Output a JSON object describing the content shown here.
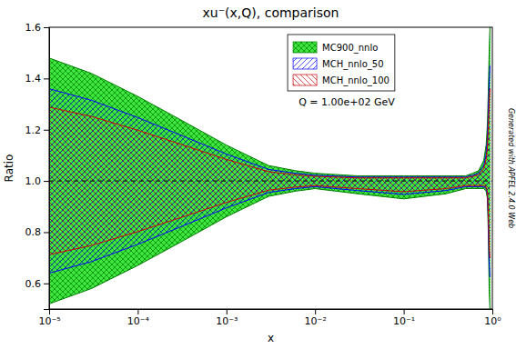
{
  "chart_data": {
    "type": "band",
    "title": "xu⁻(x,Q), comparison",
    "xlabel": "x",
    "ylabel": "Ratio",
    "log": "x",
    "grid": false,
    "legend": "upper right",
    "xlim": [
      1e-05,
      1.0
    ],
    "ylim": [
      0.5,
      1.6
    ],
    "xticks": [
      {
        "value": 1e-05,
        "label": "10⁻⁵"
      },
      {
        "value": 0.0001,
        "label": "10⁻⁴"
      },
      {
        "value": 0.001,
        "label": "10⁻³"
      },
      {
        "value": 0.01,
        "label": "10⁻²"
      },
      {
        "value": 0.1,
        "label": "10⁻¹"
      },
      {
        "value": 1,
        "label": "10⁰"
      }
    ],
    "yticks": [
      0.6,
      0.8,
      {
        "value": 1.0,
        "label": "1.0"
      },
      1.2,
      1.4,
      1.6
    ],
    "annotations": [
      "Q = 1.00e+02 GeV",
      "Generated with APFEL 2.4.0 Web"
    ],
    "reference_lines": [
      {
        "y": 1.0,
        "line_style": "dashed"
      }
    ],
    "x": [
      1e-05,
      3e-05,
      0.0001,
      0.0003,
      0.001,
      0.003,
      0.006,
      0.01,
      0.03,
      0.1,
      0.3,
      0.5,
      0.6,
      0.7,
      0.8,
      0.85,
      0.88,
      0.9,
      0.92,
      0.94,
      0.95
    ],
    "series": [
      {
        "name": "MC900_nnlo",
        "color": "#00dd00",
        "upper": [
          1.48,
          1.42,
          1.33,
          1.24,
          1.14,
          1.06,
          1.04,
          1.03,
          1.02,
          1.02,
          1.02,
          1.02,
          1.03,
          1.04,
          1.08,
          1.14,
          1.22,
          1.35,
          1.5,
          1.6,
          1.6
        ],
        "lower": [
          0.52,
          0.58,
          0.67,
          0.76,
          0.86,
          0.94,
          0.96,
          0.97,
          0.95,
          0.93,
          0.95,
          0.97,
          0.97,
          0.97,
          0.97,
          0.96,
          0.93,
          0.8,
          0.58,
          0.5,
          0.5
        ]
      },
      {
        "name": "MCH_nnlo_50",
        "color": "#0000ff",
        "upper": [
          1.36,
          1.315,
          1.2475,
          1.18,
          1.105,
          1.045,
          1.03,
          1.0225,
          1.015,
          1.015,
          1.015,
          1.015,
          1.0225,
          1.03,
          1.06,
          1.105,
          1.165,
          1.2625,
          1.375,
          1.45,
          1.45
        ],
        "lower": [
          0.64,
          0.685,
          0.7525,
          0.82,
          0.895,
          0.955,
          0.97,
          0.9775,
          0.9625,
          0.9475,
          0.9625,
          0.9775,
          0.9775,
          0.9775,
          0.9775,
          0.97,
          0.9475,
          0.85,
          0.685,
          0.625,
          0.625
        ]
      },
      {
        "name": "MCH_nnlo_100",
        "color": "#cc0000",
        "upper": [
          1.288,
          1.252,
          1.198,
          1.144,
          1.084,
          1.036,
          1.024,
          1.018,
          1.012,
          1.012,
          1.012,
          1.012,
          1.018,
          1.024,
          1.048,
          1.084,
          1.132,
          1.21,
          1.3,
          1.36,
          1.36
        ],
        "lower": [
          0.712,
          0.748,
          0.802,
          0.856,
          0.916,
          0.964,
          0.976,
          0.982,
          0.97,
          0.958,
          0.97,
          0.982,
          0.982,
          0.982,
          0.982,
          0.976,
          0.958,
          0.88,
          0.748,
          0.7,
          0.7
        ]
      }
    ]
  }
}
